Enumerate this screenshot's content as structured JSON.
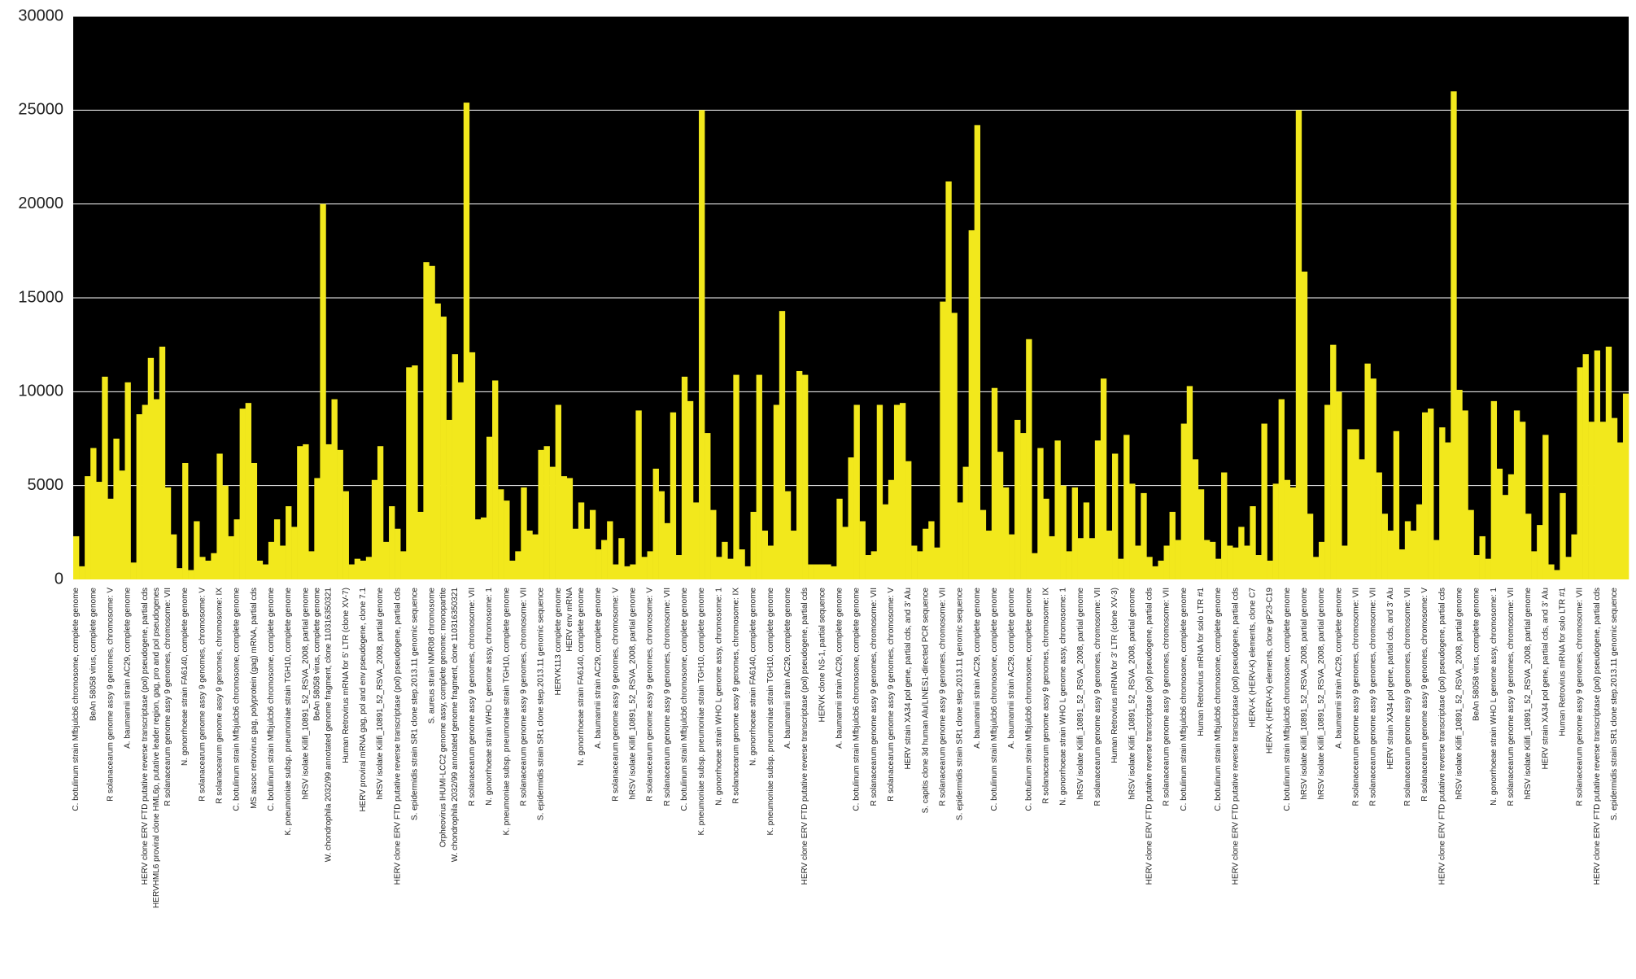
{
  "chart_data": {
    "type": "bar",
    "color": "#f2e81c",
    "background": "#000000",
    "grid": true,
    "ylim": [
      0,
      30000
    ],
    "yticks": [
      0,
      5000,
      10000,
      15000,
      20000,
      25000,
      30000
    ],
    "categories": [
      "C. botulinum strain Mfbjulcb6 chromosome, complete genome",
      null,
      null,
      "BeAn 58058 virus, complete genome",
      null,
      null,
      "R solanacearum genome assy 9 genomes, chromosome: V",
      null,
      null,
      "A. baumannii strain AC29, complete genome",
      null,
      null,
      "HERV clone ERV FTD putative reverse transcriptase (pol) pseudogene, partial cds",
      null,
      "HERVHML6 proviral clone HML6p, putative leader region, gag, pro and pol pseudogenes",
      null,
      "R solanacearum genome assy 9 genomes, chromosome: VII",
      null,
      null,
      "N. gonorrhoeae strain FA6140, complete genome",
      null,
      null,
      "R solanacearum genome assy 9 genomes, chromosome: V",
      null,
      null,
      "R solanacearum genome assy 9 genomes, chromosome: IX",
      null,
      null,
      "C. botulinum strain Mfbjulcb6 chromosome, complete genome",
      null,
      null,
      "MS assoc retrovirus gag, polyprotein (gag) mRNA, partial cds",
      null,
      null,
      "C. botulinum strain Mfbjulcb6 chromosome, complete genome",
      null,
      null,
      "K. pneumoniae subsp. pneumoniae strain TGH10, complete genome",
      null,
      null,
      "hRSV isolate Kilifi_10891_52_RSVA_2008, partial genome",
      null,
      "BeAn 58058 virus, complete genome",
      null,
      "W. chondrophila 2032/99 annotated genome fragment, clone 110316350321",
      null,
      null,
      "Human Retrovirus mRNA for 5' LTR (clone XV-7)",
      null,
      null,
      "HERV proviral mRNA gag, pol and env pseudogene, clone 7.1",
      null,
      null,
      "hRSV isolate Kilifi_10891_52_RSVA_2008, partial genome",
      null,
      null,
      "HERV clone ERV FTD putative reverse transcriptase (pol) pseudogene, partial cds",
      null,
      null,
      "S. epidermidis strain SR1 clone step.2013.11 genomic sequence",
      null,
      null,
      "S. aureus strain NMR08 chromosome",
      null,
      "Orpheovirus IHUMI-LCC2 genome assy, complete genome: monopartite",
      null,
      "W. chondrophila 2032/99 annotated genome fragment, clone 110316350321",
      null,
      null,
      "R solanacearum genome assy 9 genomes, chromosome: VII",
      null,
      null,
      "N. gonorrhoeae strain WHO L genome assy, chromosome: 1",
      null,
      null,
      "K. pneumoniae subsp. pneumoniae strain TGH10, complete genome",
      null,
      null,
      "R solanacearum genome assy 9 genomes, chromosome: VII",
      null,
      null,
      "S. epidermidis strain SR1 clone step.2013.11 genomic sequence",
      null,
      null,
      "HERVK113 complete genome",
      null,
      "HERV env mRNA",
      null,
      "N. gonorrhoeae strain FA6140, complete genome",
      null,
      null,
      "A. baumannii strain AC29, complete genome",
      null,
      null,
      "R solanacearum genome assy 9 genomes, chromosome: V",
      null,
      null,
      "hRSV isolate Kilifi_10891_52_RSVA_2008, partial genome",
      null,
      null,
      "R solanacearum genome assy 9 genomes, chromosome: V",
      null,
      null,
      "R solanacearum genome assy 9 genomes, chromosome: VII",
      null,
      null,
      "C. botulinum strain Mfbjulcb6 chromosome, complete genome",
      null,
      null,
      "K. pneumoniae subsp. pneumoniae strain TGH10, complete genome",
      null,
      null,
      "N. gonorrhoeae strain WHO L genome assy, chromosome: 1",
      null,
      null,
      "R solanacearum genome assy 9 genomes, chromosome: IX",
      null,
      null,
      "N. gonorrhoeae strain FA6140, complete genome",
      null,
      null,
      "K. pneumoniae subsp. pneumoniae strain TGH10, complete genome",
      null,
      null,
      "A. baumannii strain AC29, complete genome",
      null,
      null,
      "HERV clone ERV FTD putative reverse transcriptase (pol) pseudogene, partial cds",
      null,
      null,
      "HERVK clone NS-1, partial sequence",
      null,
      null,
      "A. baumannii strain AC29, complete genome",
      null,
      null,
      "C. botulinum strain Mfbjulcb6 chromosome, complete genome",
      null,
      null,
      "R solanacearum genome assy 9 genomes, chromosome: VII",
      null,
      null,
      "R solanacearum genome assy 9 genomes, chromosome: V",
      null,
      null,
      "HERV strain XA34 pol gene, partial cds, and 3' Alu",
      null,
      null,
      "S. capitis clone 3d human Alu/LINES1-directed PCR sequence",
      null,
      null,
      "R solanacearum genome assy 9 genomes, chromosome: VII",
      null,
      null,
      "S. epidermidis strain SR1 clone step.2013.11 genomic sequence",
      null,
      null,
      "A. baumannii strain AC29, complete genome",
      null,
      null,
      "C. botulinum strain Mfbjulcb6 chromosome, complete genome",
      null,
      null,
      "A. baumannii strain AC29, complete genome",
      null,
      null,
      "C. botulinum strain Mfbjulcb6 chromosome, complete genome",
      null,
      null,
      "R solanacearum genome assy 9 genomes, chromosome: IX",
      null,
      null,
      "N. gonorrhoeae strain WHO L genome assy, chromosome: 1",
      null,
      null,
      "hRSV isolate Kilifi_10891_52_RSVA_2008, partial genome",
      null,
      null,
      "R solanacearum genome assy 9 genomes, chromosome: VII",
      null,
      null,
      "Human Retrovirus mRNA for 3' LTR (clone XV-3)",
      null,
      null,
      "hRSV isolate Kilifi_10891_52_RSVA_2008, partial genome",
      null,
      null,
      "HERV clone ERV FTD putative reverse transcriptase (pol) pseudogene, partial cds",
      null,
      null,
      "R solanacearum genome assy 9 genomes, chromosome: VII",
      null,
      null,
      "C. botulinum strain Mfbjulcb6 chromosome, complete genome",
      null,
      null,
      "Human Retrovirus mRNA for solo LTR #1",
      null,
      null,
      "C. botulinum strain Mfbjulcb6 chromosome, complete genome",
      null,
      null,
      "HERV clone ERV FTD putative reverse transcriptase (pol) pseudogene, partial cds",
      null,
      null,
      "HERV-K (HERV-K) elements, clone C7",
      null,
      null,
      "HERV-K (HERV-K) elements, clone gP23-C19",
      null,
      null,
      "C. botulinum strain Mfbjulcb6 chromosome, complete genome",
      null,
      null,
      "hRSV isolate Kilifi_10891_52_RSVA_2008, partial genome",
      null,
      null,
      "hRSV isolate Kilifi_10891_52_RSVA_2008, partial genome",
      null,
      null,
      "A. baumannii strain AC29, complete genome",
      null,
      null,
      "R solanacearum genome assy 9 genomes, chromosome: VII",
      null,
      null,
      "R solanacearum genome assy 9 genomes, chromosome: VII",
      null,
      null,
      "HERV strain XA34 pol gene, partial cds, and 3' Alu",
      null,
      null,
      "R solanacearum genome assy 9 genomes, chromosome: VII",
      null,
      null,
      "R solanacearum genome assy 9 genomes, chromosome: V",
      null,
      null,
      "HERV clone ERV FTD putative reverse transcriptase (pol) pseudogene, partial cds",
      null,
      null,
      "hRSV isolate Kilifi_10891_52_RSVA_2008, partial genome",
      null,
      null,
      "BeAn 58058 virus, complete genome",
      null,
      null,
      "N. gonorrhoeae strain WHO L genome assy, chromosome: 1",
      null,
      null,
      "R solanacearum genome assy 9 genomes, chromosome: VII",
      null,
      null,
      "hRSV isolate Kilifi_10891_52_RSVA_2008, partial genome",
      null,
      null,
      "HERV strain XA34 pol gene, partial cds, and 3' Alu",
      null,
      null,
      "Human Retrovirus mRNA for solo LTR #1",
      null,
      null,
      "R solanacearum genome assy 9 genomes, chromosome: VII",
      null,
      null,
      "HERV clone ERV FTD putative reverse transcriptase (pol) pseudogene, partial cds",
      null,
      null,
      "S. epidermidis strain SR1 clone step.2013.11 genomic sequence",
      null,
      null
    ],
    "values": [
      2300,
      700,
      5500,
      7000,
      5200,
      10800,
      4300,
      7500,
      5800,
      10500,
      900,
      8800,
      9300,
      11800,
      9600,
      12400,
      4900,
      2400,
      600,
      6200,
      500,
      3100,
      1200,
      1000,
      1400,
      6700,
      5000,
      2300,
      3200,
      9100,
      9400,
      6200,
      1000,
      800,
      2000,
      3200,
      1800,
      3900,
      2800,
      7100,
      7200,
      1500,
      5400,
      20000,
      7200,
      9600,
      6900,
      4700,
      800,
      1100,
      1000,
      1200,
      5300,
      7100,
      2000,
      3900,
      2700,
      1500,
      11300,
      11400,
      3600,
      16900,
      16700,
      14700,
      14000,
      8500,
      12000,
      10500,
      25400,
      12100,
      3200,
      3300,
      7600,
      10600,
      4800,
      4200,
      1000,
      1500,
      4900,
      2600,
      2400,
      6900,
      7100,
      6000,
      9300,
      5500,
      5400,
      2700,
      4100,
      2700,
      3700,
      1600,
      2100,
      3100,
      800,
      2200,
      700,
      800,
      9000,
      1200,
      1500,
      5900,
      4700,
      3000,
      8900,
      1300,
      10800,
      9500,
      4100,
      25000,
      7800,
      3700,
      1200,
      2000,
      1100,
      10900,
      1600,
      700,
      3600,
      10900,
      2600,
      1800,
      9300,
      14300,
      4700,
      2600,
      11100,
      10900,
      800,
      800,
      800,
      800,
      700,
      4300,
      2800,
      6500,
      9300,
      3100,
      1300,
      1500,
      9300,
      4000,
      5300,
      9300,
      9400,
      6300,
      1800,
      1500,
      2700,
      3100,
      1700,
      14800,
      21200,
      14200,
      4100,
      6000,
      18600,
      24200,
      3700,
      2600,
      10200,
      6800,
      4900,
      2400,
      8500,
      7800,
      12800,
      1400,
      7000,
      4300,
      2300,
      7400,
      5000,
      1500,
      4900,
      2200,
      4100,
      2200,
      7400,
      10700,
      2600,
      6700,
      1100,
      7700,
      5100,
      1800,
      4600,
      1200,
      700,
      1000,
      1800,
      3600,
      2100,
      8300,
      10300,
      6400,
      4800,
      2100,
      2000,
      1100,
      5700,
      1800,
      1700,
      2800,
      1800,
      3900,
      1300,
      8300,
      1000,
      5100,
      9600,
      5300,
      4900,
      25000,
      16400,
      3500,
      1200,
      2000,
      9300,
      12500,
      10000,
      1800,
      8000,
      8000,
      6400,
      11500,
      10700,
      5700,
      3500,
      2600,
      7900,
      1600,
      3100,
      2600,
      4000,
      8900,
      9100,
      2100,
      8100,
      7300,
      26000,
      10100,
      9000,
      3700,
      1300,
      2300,
      1100,
      9500,
      5900,
      4500,
      5600,
      9000,
      8400,
      3500,
      1500,
      2900,
      7700,
      800,
      500,
      4600,
      1200,
      2400,
      11300,
      12000,
      8400,
      12200,
      8400,
      12400,
      8600,
      7300,
      9900
    ]
  }
}
